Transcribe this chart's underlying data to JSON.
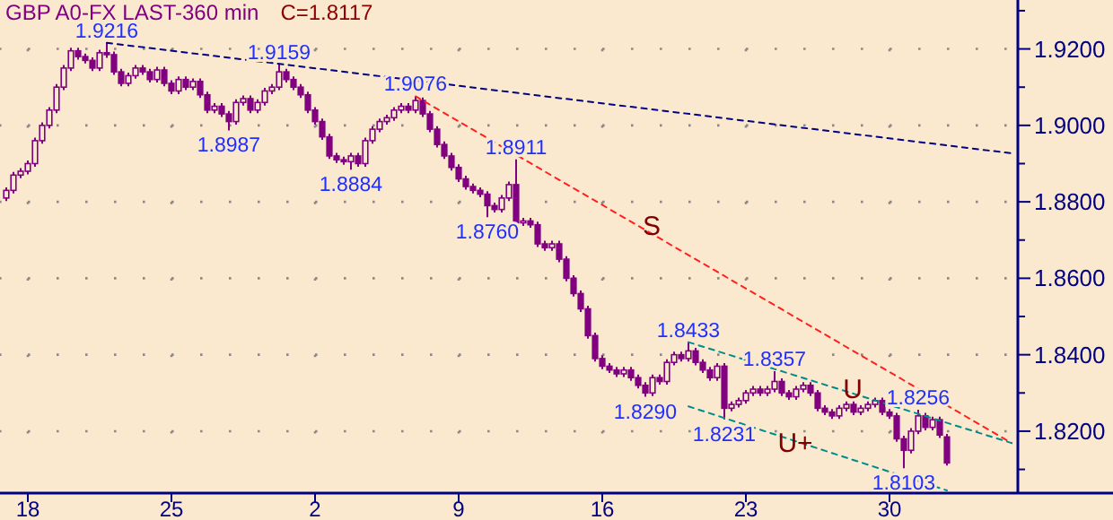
{
  "chart_data": {
    "type": "candlestick",
    "title": "GBP A0-FX LAST-360 min",
    "subtitle": "C=1.8117",
    "ylim": [
      1.8038,
      1.9328
    ],
    "grid": true,
    "categories": [
      null,
      null,
      null,
      "18",
      null,
      null,
      null,
      null,
      null,
      null,
      null,
      null,
      null,
      null,
      null,
      null,
      null,
      null,
      null,
      null,
      null,
      null,
      null,
      "25",
      null,
      null,
      null,
      null,
      null,
      null,
      null,
      null,
      null,
      null,
      null,
      null,
      null,
      null,
      null,
      null,
      null,
      null,
      null,
      "2",
      null,
      null,
      null,
      null,
      null,
      null,
      null,
      null,
      null,
      null,
      null,
      null,
      null,
      null,
      null,
      null,
      null,
      null,
      null,
      "9",
      null,
      null,
      null,
      null,
      null,
      null,
      null,
      null,
      null,
      null,
      null,
      null,
      null,
      null,
      null,
      null,
      null,
      null,
      null,
      "16",
      null,
      null,
      null,
      null,
      null,
      null,
      null,
      null,
      null,
      null,
      null,
      null,
      null,
      null,
      null,
      null,
      null,
      null,
      null,
      "23",
      null,
      null,
      null,
      null,
      null,
      null,
      null,
      null,
      null,
      null,
      null,
      null,
      null,
      null,
      null,
      null,
      null,
      null,
      null,
      "30",
      null,
      null,
      null,
      null,
      null,
      null,
      null,
      null,
      null,
      null,
      null,
      null,
      null,
      null,
      null,
      null,
      null
    ],
    "yticks": [
      {
        "value": 1.81,
        "label": null
      },
      {
        "value": 1.82,
        "label": "1.8200"
      },
      {
        "value": 1.83,
        "label": null
      },
      {
        "value": 1.84,
        "label": "1.8400"
      },
      {
        "value": 1.85,
        "label": null
      },
      {
        "value": 1.86,
        "label": "1.8600"
      },
      {
        "value": 1.87,
        "label": null
      },
      {
        "value": 1.88,
        "label": "1.8800"
      },
      {
        "value": 1.89,
        "label": null
      },
      {
        "value": 1.9,
        "label": "1.9000"
      },
      {
        "value": 1.91,
        "label": null
      },
      {
        "value": 1.92,
        "label": "1.9200"
      },
      {
        "value": 1.93,
        "label": null
      }
    ],
    "series": [
      {
        "color": "#800080",
        "ohlc": [
          [
            1.881,
            1.8838,
            1.8802,
            1.883
          ],
          [
            1.883,
            1.8878,
            1.8822,
            1.887
          ],
          [
            1.887,
            1.8888,
            1.8862,
            1.888
          ],
          [
            1.888,
            1.8908,
            1.8872,
            1.89
          ],
          [
            1.89,
            1.8968,
            1.8892,
            1.896
          ],
          [
            1.896,
            1.9008,
            1.8952,
            1.9
          ],
          [
            1.9,
            1.9048,
            1.8992,
            1.904
          ],
          [
            1.904,
            1.9108,
            1.9032,
            1.91
          ],
          [
            1.91,
            1.9158,
            1.9092,
            1.915
          ],
          [
            1.915,
            1.9203,
            1.9142,
            1.9195
          ],
          [
            1.9195,
            1.9203,
            1.9172,
            1.918
          ],
          [
            1.918,
            1.9188,
            1.9162,
            1.917
          ],
          [
            1.917,
            1.9178,
            1.9142,
            1.915
          ],
          [
            1.915,
            1.9198,
            1.9142,
            1.919
          ],
          [
            1.919,
            1.9216,
            1.9177,
            1.9185
          ],
          [
            1.9185,
            1.9193,
            1.9132,
            1.914
          ],
          [
            1.914,
            1.9148,
            1.9102,
            1.911
          ],
          [
            1.911,
            1.9138,
            1.9102,
            1.913
          ],
          [
            1.913,
            1.9158,
            1.9122,
            1.915
          ],
          [
            1.915,
            1.9158,
            1.9132,
            1.914
          ],
          [
            1.914,
            1.9148,
            1.9112,
            1.912
          ],
          [
            1.912,
            1.9153,
            1.9112,
            1.9145
          ],
          [
            1.9145,
            1.9153,
            1.9102,
            1.911
          ],
          [
            1.911,
            1.9118,
            1.9082,
            1.909
          ],
          [
            1.909,
            1.9128,
            1.9082,
            1.912
          ],
          [
            1.912,
            1.9128,
            1.9092,
            1.91
          ],
          [
            1.91,
            1.9123,
            1.9092,
            1.9115
          ],
          [
            1.9115,
            1.9123,
            1.9072,
            1.908
          ],
          [
            1.908,
            1.9088,
            1.9032,
            1.904
          ],
          [
            1.904,
            1.9058,
            1.9032,
            1.905
          ],
          [
            1.905,
            1.9058,
            1.9022,
            1.903
          ],
          [
            1.903,
            1.9038,
            1.8987,
            1.901
          ],
          [
            1.901,
            1.9068,
            1.9002,
            1.906
          ],
          [
            1.906,
            1.9078,
            1.9052,
            1.907
          ],
          [
            1.907,
            1.9078,
            1.9032,
            1.904
          ],
          [
            1.904,
            1.9068,
            1.9032,
            1.906
          ],
          [
            1.906,
            1.9098,
            1.9052,
            1.909
          ],
          [
            1.909,
            1.9108,
            1.9082,
            1.91
          ],
          [
            1.91,
            1.9159,
            1.9092,
            1.914
          ],
          [
            1.914,
            1.9148,
            1.9112,
            1.912
          ],
          [
            1.912,
            1.9128,
            1.9092,
            1.91
          ],
          [
            1.91,
            1.9108,
            1.9072,
            1.908
          ],
          [
            1.908,
            1.9088,
            1.9032,
            1.904
          ],
          [
            1.904,
            1.9048,
            1.9002,
            1.901
          ],
          [
            1.901,
            1.9018,
            1.8962,
            1.897
          ],
          [
            1.897,
            1.8978,
            1.8912,
            1.892
          ],
          [
            1.892,
            1.8928,
            1.8902,
            1.891
          ],
          [
            1.891,
            1.8918,
            1.8897,
            1.8905
          ],
          [
            1.8905,
            1.8928,
            1.8884,
            1.892
          ],
          [
            1.892,
            1.8928,
            1.8892,
            1.89
          ],
          [
            1.89,
            1.8968,
            1.8892,
            1.896
          ],
          [
            1.896,
            1.8998,
            1.8952,
            1.899
          ],
          [
            1.899,
            1.9018,
            1.8982,
            1.901
          ],
          [
            1.901,
            1.9028,
            1.9002,
            1.902
          ],
          [
            1.902,
            1.9048,
            1.9012,
            1.904
          ],
          [
            1.904,
            1.9058,
            1.9032,
            1.905
          ],
          [
            1.905,
            1.9058,
            1.9032,
            1.904
          ],
          [
            1.904,
            1.9076,
            1.9032,
            1.9065
          ],
          [
            1.9065,
            1.9073,
            1.9022,
            1.903
          ],
          [
            1.903,
            1.9038,
            1.8982,
            1.899
          ],
          [
            1.899,
            1.8998,
            1.8942,
            1.895
          ],
          [
            1.895,
            1.8958,
            1.8912,
            1.892
          ],
          [
            1.892,
            1.8928,
            1.8882,
            1.889
          ],
          [
            1.889,
            1.8898,
            1.8852,
            1.886
          ],
          [
            1.886,
            1.8868,
            1.8832,
            1.884
          ],
          [
            1.884,
            1.8848,
            1.8822,
            1.883
          ],
          [
            1.883,
            1.8838,
            1.8812,
            1.882
          ],
          [
            1.882,
            1.8828,
            1.876,
            1.879
          ],
          [
            1.879,
            1.8798,
            1.8772,
            1.878
          ],
          [
            1.878,
            1.8818,
            1.8772,
            1.881
          ],
          [
            1.881,
            1.8853,
            1.8802,
            1.8845
          ],
          [
            1.8845,
            1.8911,
            1.874,
            1.8745
          ],
          [
            1.8745,
            1.8758,
            1.8737,
            1.875
          ],
          [
            1.875,
            1.8758,
            1.8732,
            1.874
          ],
          [
            1.874,
            1.8748,
            1.8682,
            1.869
          ],
          [
            1.869,
            1.8698,
            1.8672,
            1.868
          ],
          [
            1.868,
            1.8698,
            1.8672,
            1.869
          ],
          [
            1.869,
            1.8698,
            1.8642,
            1.865
          ],
          [
            1.865,
            1.8658,
            1.8592,
            1.86
          ],
          [
            1.86,
            1.8608,
            1.8552,
            1.856
          ],
          [
            1.856,
            1.8568,
            1.8512,
            1.852
          ],
          [
            1.852,
            1.8528,
            1.8442,
            1.845
          ],
          [
            1.845,
            1.8458,
            1.8382,
            1.839
          ],
          [
            1.839,
            1.8398,
            1.8362,
            1.837
          ],
          [
            1.837,
            1.8378,
            1.8352,
            1.836
          ],
          [
            1.836,
            1.8368,
            1.8342,
            1.835
          ],
          [
            1.835,
            1.8368,
            1.8342,
            1.836
          ],
          [
            1.836,
            1.8368,
            1.8332,
            1.834
          ],
          [
            1.834,
            1.8348,
            1.8312,
            1.832
          ],
          [
            1.832,
            1.8328,
            1.829,
            1.83
          ],
          [
            1.83,
            1.8348,
            1.8292,
            1.834
          ],
          [
            1.834,
            1.8348,
            1.8322,
            1.833
          ],
          [
            1.833,
            1.8388,
            1.8322,
            1.838
          ],
          [
            1.838,
            1.8408,
            1.8372,
            1.84
          ],
          [
            1.84,
            1.8408,
            1.8382,
            1.839
          ],
          [
            1.839,
            1.8433,
            1.8382,
            1.841
          ],
          [
            1.841,
            1.8418,
            1.8372,
            1.838
          ],
          [
            1.838,
            1.8388,
            1.8352,
            1.836
          ],
          [
            1.836,
            1.8368,
            1.8332,
            1.834
          ],
          [
            1.834,
            1.8378,
            1.8332,
            1.837
          ],
          [
            1.837,
            1.8378,
            1.8231,
            1.826
          ],
          [
            1.826,
            1.8278,
            1.8252,
            1.827
          ],
          [
            1.827,
            1.8288,
            1.8262,
            1.828
          ],
          [
            1.828,
            1.8308,
            1.8272,
            1.83
          ],
          [
            1.83,
            1.8318,
            1.8292,
            1.831
          ],
          [
            1.831,
            1.8318,
            1.8292,
            1.83
          ],
          [
            1.83,
            1.8318,
            1.8292,
            1.831
          ],
          [
            1.831,
            1.8357,
            1.8302,
            1.833
          ],
          [
            1.833,
            1.8338,
            1.8292,
            1.83
          ],
          [
            1.83,
            1.8308,
            1.8282,
            1.829
          ],
          [
            1.829,
            1.8318,
            1.8282,
            1.831
          ],
          [
            1.831,
            1.8328,
            1.8302,
            1.832
          ],
          [
            1.832,
            1.8328,
            1.8292,
            1.83
          ],
          [
            1.83,
            1.8308,
            1.8252,
            1.826
          ],
          [
            1.826,
            1.8268,
            1.8242,
            1.825
          ],
          [
            1.825,
            1.8258,
            1.8232,
            1.824
          ],
          [
            1.824,
            1.8268,
            1.8232,
            1.826
          ],
          [
            1.826,
            1.8278,
            1.8252,
            1.827
          ],
          [
            1.827,
            1.8278,
            1.8242,
            1.825
          ],
          [
            1.825,
            1.8268,
            1.8242,
            1.826
          ],
          [
            1.826,
            1.8278,
            1.8252,
            1.827
          ],
          [
            1.827,
            1.8288,
            1.8262,
            1.828
          ],
          [
            1.828,
            1.8288,
            1.8242,
            1.825
          ],
          [
            1.825,
            1.8258,
            1.8232,
            1.824
          ],
          [
            1.824,
            1.8248,
            1.8172,
            1.818
          ],
          [
            1.818,
            1.8188,
            1.8103,
            1.815
          ],
          [
            1.815,
            1.8208,
            1.8142,
            1.82
          ],
          [
            1.82,
            1.8256,
            1.8192,
            1.824
          ],
          [
            1.824,
            1.8248,
            1.8202,
            1.821
          ],
          [
            1.821,
            1.8238,
            1.8202,
            1.823
          ],
          [
            1.823,
            1.8238,
            1.8182,
            1.819
          ],
          [
            1.8185,
            1.8193,
            1.811,
            1.8117
          ],
          null,
          null,
          null,
          null,
          null,
          null,
          null,
          null,
          null
        ]
      },
      {
        "type": "line",
        "color": "#000080",
        "line_style": "dashed",
        "values": [
          null,
          null,
          null,
          null,
          null,
          null,
          null,
          null,
          null,
          null,
          null,
          null,
          null,
          null,
          1.9216,
          null,
          null,
          null,
          null,
          null,
          null,
          null,
          null,
          null,
          null,
          null,
          null,
          null,
          null,
          null,
          null,
          null,
          null,
          null,
          null,
          null,
          null,
          null,
          null,
          null,
          null,
          null,
          null,
          null,
          null,
          null,
          null,
          null,
          null,
          null,
          null,
          null,
          null,
          null,
          null,
          null,
          null,
          null,
          null,
          null,
          null,
          null,
          null,
          null,
          null,
          null,
          null,
          null,
          null,
          null,
          null,
          null,
          null,
          null,
          null,
          null,
          null,
          null,
          null,
          null,
          null,
          null,
          null,
          null,
          null,
          null,
          null,
          null,
          null,
          null,
          null,
          null,
          null,
          null,
          null,
          null,
          null,
          null,
          null,
          null,
          null,
          null,
          null,
          null,
          null,
          null,
          null,
          null,
          null,
          null,
          null,
          null,
          null,
          null,
          null,
          null,
          null,
          null,
          null,
          null,
          null,
          null,
          null,
          null,
          null,
          null,
          null,
          null,
          null,
          null,
          null,
          null,
          null,
          null,
          null,
          null,
          null,
          null,
          null,
          null,
          1.8927
        ]
      },
      {
        "type": "line",
        "color": "#ff2020",
        "line_style": "dashed",
        "values": [
          null,
          null,
          null,
          null,
          null,
          null,
          null,
          null,
          null,
          null,
          null,
          null,
          null,
          null,
          null,
          null,
          null,
          null,
          null,
          null,
          null,
          null,
          null,
          null,
          null,
          null,
          null,
          null,
          null,
          null,
          null,
          null,
          null,
          null,
          null,
          null,
          null,
          null,
          null,
          null,
          null,
          null,
          null,
          null,
          null,
          null,
          null,
          null,
          null,
          null,
          null,
          null,
          null,
          null,
          null,
          null,
          null,
          1.9076,
          null,
          null,
          null,
          null,
          null,
          null,
          null,
          null,
          null,
          null,
          null,
          null,
          null,
          null,
          null,
          null,
          null,
          null,
          null,
          null,
          null,
          null,
          null,
          null,
          null,
          null,
          null,
          null,
          null,
          null,
          null,
          null,
          null,
          null,
          null,
          null,
          null,
          null,
          null,
          null,
          null,
          null,
          null,
          null,
          null,
          null,
          null,
          null,
          null,
          null,
          null,
          null,
          null,
          null,
          null,
          null,
          null,
          null,
          null,
          null,
          null,
          null,
          null,
          null,
          null,
          null,
          null,
          null,
          null,
          null,
          null,
          null,
          null,
          null,
          null,
          null,
          null,
          null,
          null,
          null,
          null,
          null,
          1.8169
        ]
      },
      {
        "type": "line",
        "color": "#008b8b",
        "line_style": "dashed",
        "values": [
          null,
          null,
          null,
          null,
          null,
          null,
          null,
          null,
          null,
          null,
          null,
          null,
          null,
          null,
          null,
          null,
          null,
          null,
          null,
          null,
          null,
          null,
          null,
          null,
          null,
          null,
          null,
          null,
          null,
          null,
          null,
          null,
          null,
          null,
          null,
          null,
          null,
          null,
          null,
          null,
          null,
          null,
          null,
          null,
          null,
          null,
          null,
          null,
          null,
          null,
          null,
          null,
          null,
          null,
          null,
          null,
          null,
          null,
          null,
          null,
          null,
          null,
          null,
          null,
          null,
          null,
          null,
          null,
          null,
          null,
          null,
          null,
          null,
          null,
          null,
          null,
          null,
          null,
          null,
          null,
          null,
          null,
          null,
          null,
          null,
          null,
          null,
          null,
          null,
          null,
          null,
          null,
          null,
          null,
          null,
          1.8433,
          null,
          null,
          null,
          null,
          null,
          null,
          null,
          null,
          null,
          null,
          null,
          null,
          null,
          null,
          null,
          null,
          null,
          null,
          null,
          null,
          null,
          null,
          null,
          null,
          null,
          null,
          null,
          null,
          null,
          null,
          null,
          null,
          null,
          null,
          null,
          null,
          null,
          null,
          null,
          null,
          null,
          null,
          null,
          null,
          1.8169
        ]
      },
      {
        "type": "line",
        "color": "#008b8b",
        "line_style": "dashed",
        "values": [
          null,
          null,
          null,
          null,
          null,
          null,
          null,
          null,
          null,
          null,
          null,
          null,
          null,
          null,
          null,
          null,
          null,
          null,
          null,
          null,
          null,
          null,
          null,
          null,
          null,
          null,
          null,
          null,
          null,
          null,
          null,
          null,
          null,
          null,
          null,
          null,
          null,
          null,
          null,
          null,
          null,
          null,
          null,
          null,
          null,
          null,
          null,
          null,
          null,
          null,
          null,
          null,
          null,
          null,
          null,
          null,
          null,
          null,
          null,
          null,
          null,
          null,
          null,
          null,
          null,
          null,
          null,
          null,
          null,
          null,
          null,
          null,
          null,
          null,
          null,
          null,
          null,
          null,
          null,
          null,
          null,
          null,
          null,
          null,
          null,
          null,
          null,
          null,
          null,
          null,
          null,
          null,
          null,
          null,
          null,
          1.8265,
          null,
          null,
          null,
          null,
          null,
          null,
          null,
          null,
          null,
          null,
          null,
          null,
          null,
          null,
          null,
          null,
          null,
          null,
          null,
          null,
          null,
          null,
          null,
          null,
          null,
          null,
          null,
          null,
          null,
          null,
          null,
          null,
          null,
          null,
          null,
          1.8045,
          null,
          null,
          null,
          null,
          null,
          null,
          null,
          null,
          null
        ]
      }
    ],
    "annotations": [
      {
        "text": "1.9216",
        "y": 1.9216
      },
      {
        "text": "1.9159",
        "y": 1.9159
      },
      {
        "text": "1.8987",
        "y": 1.8987
      },
      {
        "text": "1.8884",
        "y": 1.8884
      },
      {
        "text": "1.9076",
        "y": 1.9076
      },
      {
        "text": "1.8911",
        "y": 1.8911
      },
      {
        "text": "1.8760",
        "y": 1.876
      },
      {
        "text": "1.8433",
        "y": 1.8433
      },
      {
        "text": "1.8290",
        "y": 1.829
      },
      {
        "text": "1.8357",
        "y": 1.8357
      },
      {
        "text": "1.8231",
        "y": 1.8231
      },
      {
        "text": "1.8256",
        "y": 1.8256
      },
      {
        "text": "1.8103",
        "y": 1.8103
      },
      "S",
      "U",
      "U+"
    ]
  }
}
